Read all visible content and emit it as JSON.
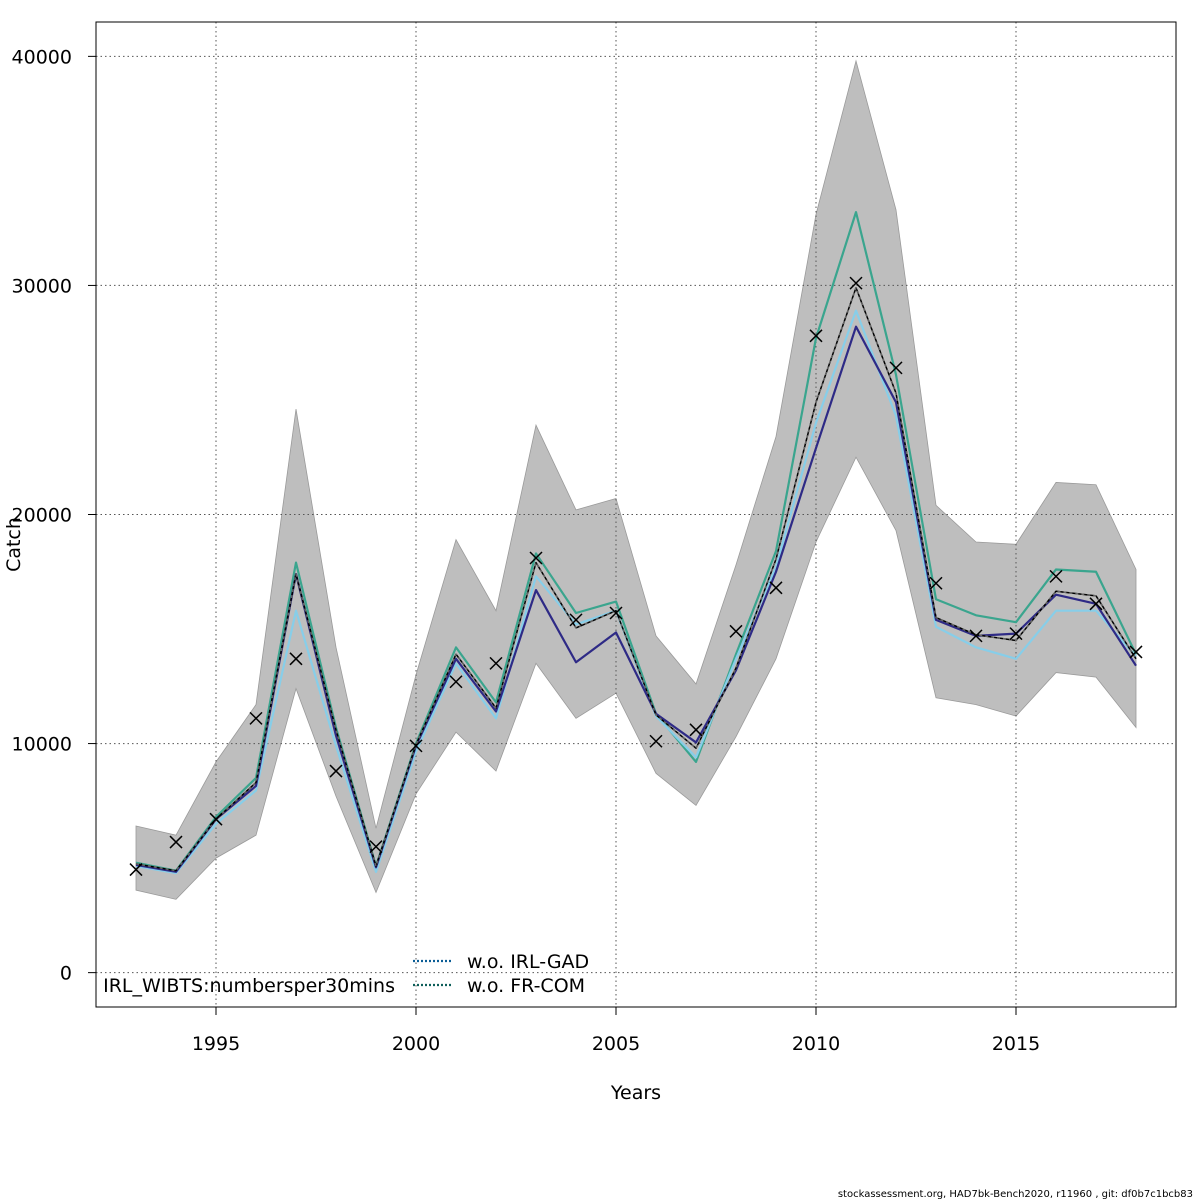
{
  "chart_data": {
    "type": "line",
    "xlabel": "Years",
    "ylabel": "Catch",
    "xlim": [
      1992.0,
      2019.0
    ],
    "ylim": [
      -1500,
      41500
    ],
    "x_ticks": [
      1995,
      2000,
      2005,
      2010,
      2015
    ],
    "y_ticks": [
      0,
      10000,
      20000,
      30000,
      40000
    ],
    "grid": true,
    "x": [
      1993,
      1994,
      1995,
      1996,
      1997,
      1998,
      1999,
      2000,
      2001,
      2002,
      2003,
      2004,
      2005,
      2006,
      2007,
      2008,
      2009,
      2010,
      2011,
      2012,
      2013,
      2014,
      2015,
      2016,
      2017,
      2018
    ],
    "band": {
      "upper": [
        6400,
        6000,
        9200,
        11700,
        24600,
        14200,
        6300,
        13000,
        18900,
        15800,
        23900,
        20200,
        20700,
        14700,
        12600,
        17800,
        23400,
        33100,
        39800,
        33300,
        20400,
        18800,
        18700,
        21400,
        21300,
        17600
      ],
      "lower": [
        3600,
        3200,
        5000,
        6000,
        12400,
        7700,
        3500,
        7800,
        10500,
        8800,
        13500,
        11100,
        12200,
        8700,
        7300,
        10300,
        13700,
        18800,
        22500,
        19300,
        12000,
        11700,
        11200,
        13100,
        12900,
        10700
      ],
      "color": "#bebebe"
    },
    "series": [
      {
        "values": [
          4750,
          4450,
          6700,
          8300,
          17400,
          10600,
          4650,
          9950,
          13900,
          11550,
          17900,
          15050,
          15800,
          11250,
          9800,
          13300,
          18050,
          24900,
          29900,
          25300,
          15500,
          14750,
          14500,
          16650,
          16450,
          13700
        ],
        "color": "#000000",
        "width": 1.5,
        "dash": "none"
      },
      {
        "values": [
          4750,
          4450,
          6700,
          8300,
          17400,
          10600,
          4650,
          9950,
          13900,
          11550,
          17900,
          15050,
          15800,
          11250,
          9800,
          13300,
          18050,
          24900,
          29900,
          25300,
          15500,
          14750,
          14500,
          16650,
          16450,
          13700
        ],
        "color": "#666666",
        "width": 1.5,
        "dash": "3,3"
      },
      {
        "values": [
          4700,
          4400,
          6700,
          8150,
          17400,
          10350,
          4600,
          9900,
          13700,
          11400,
          16700,
          13550,
          14850,
          11300,
          10050,
          13200,
          17500,
          22900,
          28200,
          24900,
          15400,
          14700,
          14800,
          16500,
          16100,
          13400
        ],
        "color": "#2e2a86",
        "width": 2.2,
        "dash": "none"
      },
      {
        "values": [
          4650,
          4350,
          6500,
          7950,
          15800,
          9900,
          4400,
          9650,
          13500,
          11100,
          17300,
          15200,
          15800,
          11200,
          9400,
          13700,
          17700,
          24000,
          28900,
          24300,
          15100,
          14200,
          13700,
          15800,
          15800,
          13800
        ],
        "color": "#87cee9",
        "width": 2.2,
        "dash": "none"
      },
      {
        "values": [
          4800,
          4450,
          6800,
          8500,
          17900,
          10700,
          4650,
          10000,
          14200,
          11800,
          18300,
          15700,
          16200,
          11300,
          9200,
          13900,
          18400,
          27700,
          33200,
          26100,
          16300,
          15600,
          15300,
          17600,
          17500,
          13900
        ],
        "color": "#3aa58e",
        "width": 2.2,
        "dash": "none"
      }
    ],
    "observed": {
      "values": [
        4500,
        5700,
        6700,
        11100,
        13700,
        8800,
        5500,
        9900,
        12700,
        13500,
        18100,
        15400,
        15700,
        10100,
        10600,
        14900,
        16800,
        27800,
        30100,
        26400,
        17000,
        14700,
        14800,
        17300,
        16100,
        14000
      ],
      "marker": "x",
      "color": "#000000"
    },
    "legend": {
      "entries": [
        {
          "label": "w.o. IRL-GAD",
          "color": "#0b5e96"
        },
        {
          "label": "w.o. FR-COM",
          "color": "#0e5f5a"
        }
      ],
      "extra_label": "IRL_WIBTS:numbersper30mins"
    }
  },
  "footer": "stockassessment.org, HAD7bk-Bench2020, r11960 , git: df0b7c1bcb83"
}
